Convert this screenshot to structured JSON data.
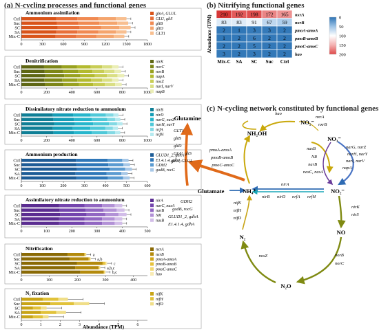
{
  "header_a": "(a)  N-cycling processes and functional genes",
  "header_b": "(b)  Nitrifying functional genes",
  "header_c": "(c)  N-cycling network constituted by functional genes",
  "samples": [
    "Ctrl",
    "Suc",
    "SC",
    "SA",
    "Mix-C"
  ],
  "x_axis_label": "Abundance  (TPM)",
  "panels": [
    {
      "title": "Ammonium assimilation",
      "ticks": [
        "0",
        "300",
        "600",
        "900",
        "1200",
        "1500",
        "1800"
      ],
      "max": 1800,
      "legend": [
        "glnA, GLUL",
        "GLU, gltS",
        "gltB",
        "gltD",
        "GLT1"
      ],
      "colors": [
        "#d9541a",
        "#e8703a",
        "#f08a52",
        "#f4a56e",
        "#f8bf90"
      ],
      "chart_data": {
        "type": "bar",
        "categories": [
          "Ctrl",
          "Suc",
          "SC",
          "SA",
          "Mix-C"
        ],
        "series": [
          {
            "name": "glnA, GLUL",
            "values": [
              500,
              510,
              520,
              500,
              490
            ]
          },
          {
            "name": "GLU, gltS",
            "values": [
              300,
              305,
              310,
              300,
              295
            ]
          },
          {
            "name": "gltB",
            "values": [
              300,
              300,
              310,
              300,
              290
            ]
          },
          {
            "name": "gltD",
            "values": [
              250,
              255,
              260,
              250,
              245
            ]
          },
          {
            "name": "GLT1",
            "values": [
              150,
              155,
              160,
              150,
              150
            ]
          }
        ]
      }
    },
    {
      "title": "Denitrification",
      "ticks": [
        "0",
        "200",
        "400",
        "600",
        "800",
        "1000"
      ],
      "max": 1000,
      "legend": [
        "nirK",
        "norC",
        "norB",
        "napA",
        "nosZ",
        "narI, narV",
        "napB"
      ],
      "colors": [
        "#5e6613",
        "#7d8617",
        "#98a11f",
        "#b3ba2f",
        "#c8cd55",
        "#dadf84",
        "#ebeeb6"
      ],
      "chart_data": {
        "type": "bar",
        "categories": [
          "Ctrl",
          "Suc",
          "SC",
          "SA",
          "Mix-C"
        ],
        "series": [
          {
            "name": "nirK",
            "values": [
              180,
              185,
              190,
              182,
              188
            ]
          },
          {
            "name": "norC",
            "values": [
              140,
              145,
              150,
              142,
              146
            ]
          },
          {
            "name": "norB",
            "values": [
              120,
              122,
              128,
              120,
              124
            ]
          },
          {
            "name": "napA",
            "values": [
              110,
              112,
              115,
              108,
              112
            ]
          },
          {
            "name": "nosZ",
            "values": [
              90,
              92,
              95,
              88,
              92
            ]
          },
          {
            "name": "narI, narV",
            "values": [
              80,
              82,
              84,
              80,
              82
            ]
          },
          {
            "name": "napB",
            "values": [
              50,
              52,
              54,
              50,
              52
            ]
          }
        ]
      }
    },
    {
      "title": "Dissimilatory nitrate reduction to ammonium",
      "ticks": [
        "0",
        "200",
        "400",
        "600",
        "800",
        "1000"
      ],
      "max": 1000,
      "legend": [
        "nirB",
        "nirD",
        "narG, narZ",
        "narH, narY",
        "nrfA",
        "nrfH"
      ],
      "colors": [
        "#0f7f96",
        "#159db6",
        "#27b6cc",
        "#4fc8d8",
        "#82d9e4",
        "#b6eaf0"
      ],
      "chart_data": {
        "type": "bar",
        "categories": [
          "Ctrl",
          "Suc",
          "SC",
          "SA",
          "Mix-C"
        ],
        "series": [
          {
            "name": "nirB",
            "values": [
              250,
              255,
              260,
              250,
              255
            ]
          },
          {
            "name": "nirD",
            "values": [
              160,
              162,
              165,
              158,
              162
            ]
          },
          {
            "name": "narG, narZ",
            "values": [
              140,
              142,
              145,
              140,
              142
            ]
          },
          {
            "name": "narH, narY",
            "values": [
              120,
              122,
              125,
              118,
              122
            ]
          },
          {
            "name": "nrfA",
            "values": [
              60,
              62,
              64,
              60,
              62
            ]
          },
          {
            "name": "nrfH",
            "values": [
              40,
              42,
              43,
              40,
              41
            ]
          }
        ]
      }
    },
    {
      "title": "Ammonium production",
      "ticks": [
        "0",
        "100",
        "200",
        "300",
        "400",
        "500",
        "600"
      ],
      "max": 600,
      "legend": [
        "GLUD1_2, gdhA",
        "E1.4.1.4, gdhA",
        "GDH2",
        "gudB, rocG"
      ],
      "colors": [
        "#1d5c96",
        "#2f77b8",
        "#5b9bd1",
        "#a7c8e8"
      ],
      "chart_data": {
        "type": "bar",
        "categories": [
          "Ctrl",
          "Suc",
          "SC",
          "SA",
          "Mix-C"
        ],
        "series": [
          {
            "name": "GLUD1_2, gdhA",
            "values": [
              260,
              262,
              265,
              258,
              262
            ]
          },
          {
            "name": "E1.4.1.4, gdhA",
            "values": [
              150,
              152,
              155,
              148,
              150
            ]
          },
          {
            "name": "GDH2",
            "values": [
              70,
              72,
              74,
              70,
              72
            ]
          },
          {
            "name": "gudB, rocG",
            "values": [
              30,
              31,
              32,
              30,
              31
            ]
          }
        ]
      }
    },
    {
      "title": "Assimilatory nitrate reduction to ammonium",
      "ticks": [
        "0",
        "100",
        "200",
        "300",
        "400",
        "500"
      ],
      "max": 500,
      "legend": [
        "nirA",
        "narC, nasA",
        "narB",
        "NR",
        "nasB"
      ],
      "colors": [
        "#5b2d91",
        "#7445ad",
        "#9166c2",
        "#b291d6",
        "#d2bde8"
      ],
      "chart_data": {
        "type": "bar",
        "categories": [
          "Ctrl",
          "Suc",
          "SC",
          "SA",
          "Mix-C"
        ],
        "series": [
          {
            "name": "nirA",
            "values": [
              150,
              152,
              155,
              150,
              150
            ]
          },
          {
            "name": "narC, nasA",
            "values": [
              100,
              102,
              104,
              100,
              100
            ]
          },
          {
            "name": "narB",
            "values": [
              70,
              72,
              73,
              70,
              70
            ]
          },
          {
            "name": "NR",
            "values": [
              50,
              52,
              53,
              50,
              50
            ]
          },
          {
            "name": "nasB",
            "values": [
              30,
              31,
              32,
              30,
              30
            ]
          }
        ]
      }
    },
    {
      "title": "Nitrification",
      "ticks": [
        "0",
        "100",
        "200",
        "300",
        "400"
      ],
      "max": 450,
      "legend": [
        "nxrA",
        "nxrB",
        "pmoA-amoA",
        "pmoB-amoB",
        "pmoC-amoC",
        "hao"
      ],
      "colors": [
        "#8a6a05",
        "#b38a0c",
        "#d1a61a",
        "#e6c23c",
        "#f2d873",
        "#f8eab2"
      ],
      "sig": [
        "a",
        "a,b",
        "c",
        "a,b,c",
        "b,c"
      ],
      "chart_data": {
        "type": "bar",
        "categories": [
          "Ctrl",
          "Suc",
          "SC",
          "SA",
          "Mix-C"
        ],
        "series": [
          {
            "name": "nxrA",
            "values": [
              165,
              172,
              198,
              192,
              210
            ]
          },
          {
            "name": "nxrB",
            "values": [
              59,
              67,
              91,
              83,
              83
            ]
          },
          {
            "name": "pmoA-amoA",
            "values": [
              2,
              3,
              3,
              1,
              2
            ]
          },
          {
            "name": "pmoB-amoB",
            "values": [
              2,
              2,
              6,
              2,
              1
            ]
          },
          {
            "name": "pmoC-amoC",
            "values": [
              2,
              2,
              5,
              2,
              2
            ]
          },
          {
            "name": "hao",
            "values": [
              2,
              2,
              3,
              2,
              3
            ]
          }
        ]
      }
    },
    {
      "title": "N₂ fixation",
      "ticks": [
        "0",
        "1",
        "2",
        "3",
        "4",
        "5",
        "6"
      ],
      "max": 6.5,
      "legend": [
        "nifK",
        "nifH",
        "nifD"
      ],
      "colors": [
        "#c8a416",
        "#e1c23a",
        "#f0de88"
      ],
      "chart_data": {
        "type": "bar",
        "categories": [
          "Ctrl",
          "Suc",
          "SC",
          "SA",
          "Mix-C"
        ],
        "series": [
          {
            "name": "nifK",
            "values": [
              1.1,
              1.5,
              0.6,
              1.0,
              0.6
            ]
          },
          {
            "name": "nifH",
            "values": [
              0.8,
              1.2,
              0.4,
              0.8,
              0.5
            ]
          },
          {
            "name": "nifD",
            "values": [
              0.5,
              0.8,
              0.3,
              0.5,
              0.3
            ]
          }
        ]
      }
    }
  ],
  "heatmap": {
    "ylabel": "Abundance (TPM)",
    "cols": [
      "Mix-C",
      "SA",
      "SC",
      "Suc",
      "Ctrl"
    ],
    "rows": [
      "nxrA",
      "nxrB",
      "pmoA-amoA",
      "pmoB-amoB",
      "pmoC-amoC",
      "hao"
    ],
    "values": [
      [
        210,
        192,
        198,
        172,
        165
      ],
      [
        83,
        83,
        91,
        67,
        59
      ],
      [
        2,
        1,
        3,
        3,
        2
      ],
      [
        1,
        2,
        6,
        2,
        2
      ],
      [
        2,
        2,
        5,
        2,
        2
      ],
      [
        3,
        2,
        3,
        2,
        2
      ]
    ],
    "legend_values": [
      "0",
      "50",
      "100",
      "150",
      "200"
    ],
    "chart_data": {
      "type": "heatmap",
      "x": [
        "Mix-C",
        "SA",
        "SC",
        "Suc",
        "Ctrl"
      ],
      "y": [
        "nxrA",
        "nxrB",
        "pmoA-amoA",
        "pmoB-amoB",
        "pmoC-amoC",
        "hao"
      ],
      "values": [
        [
          210,
          192,
          198,
          172,
          165
        ],
        [
          83,
          83,
          91,
          67,
          59
        ],
        [
          2,
          1,
          3,
          3,
          2
        ],
        [
          1,
          2,
          6,
          2,
          2
        ],
        [
          2,
          2,
          5,
          2,
          2
        ],
        [
          3,
          2,
          3,
          2,
          2
        ]
      ]
    }
  },
  "network": {
    "nodes": {
      "nh2oh": "NH₂OH",
      "no2_top": "NO₂⁻",
      "no3": "NO₃⁻",
      "no2_right": "NO₂⁻",
      "nh4": "NH₄⁺",
      "glutamine": "Glutamine",
      "glutamate": "Glutamate",
      "no": "NO",
      "n2": "N₂",
      "n2o": "N₂O"
    },
    "labels": {
      "hao": "hao",
      "nxrA": "nxrA",
      "nxrB": "nxrB",
      "narG": "narG, narZ",
      "narH": "narH, narY",
      "narI": "narI, narV",
      "napA": "napA",
      "nasB": "nasB",
      "NR": "NR",
      "narB": "narB",
      "nasC": "nasC, nasA",
      "pmoA": "pmoA-amoA",
      "pmoB": "pmoB-amoB",
      "pmoC": "pmoC-amoC",
      "nirA": "nirA",
      "nirB": "nirB",
      "nirD": "nirD",
      "nrfA": "nrfA",
      "nrfH": "nrfH",
      "GLT1": "GLT1",
      "gltB": "gltB",
      "gltD": "gltD",
      "GLU": "GLU, gltS",
      "glnA": "glnA, GLUL",
      "GDH2": "GDH2",
      "gudB": "gudB, rocG",
      "GLUD1": "GLUD1_2, gdhA",
      "E14": "E1.4.1.4, gdhA",
      "nifK": "nifK",
      "nifH": "nifH",
      "nifD": "nifD",
      "nirK": "nirK",
      "nirS": "nirS",
      "norB": "norB",
      "norC": "norC",
      "nosZ": "nosZ"
    }
  }
}
